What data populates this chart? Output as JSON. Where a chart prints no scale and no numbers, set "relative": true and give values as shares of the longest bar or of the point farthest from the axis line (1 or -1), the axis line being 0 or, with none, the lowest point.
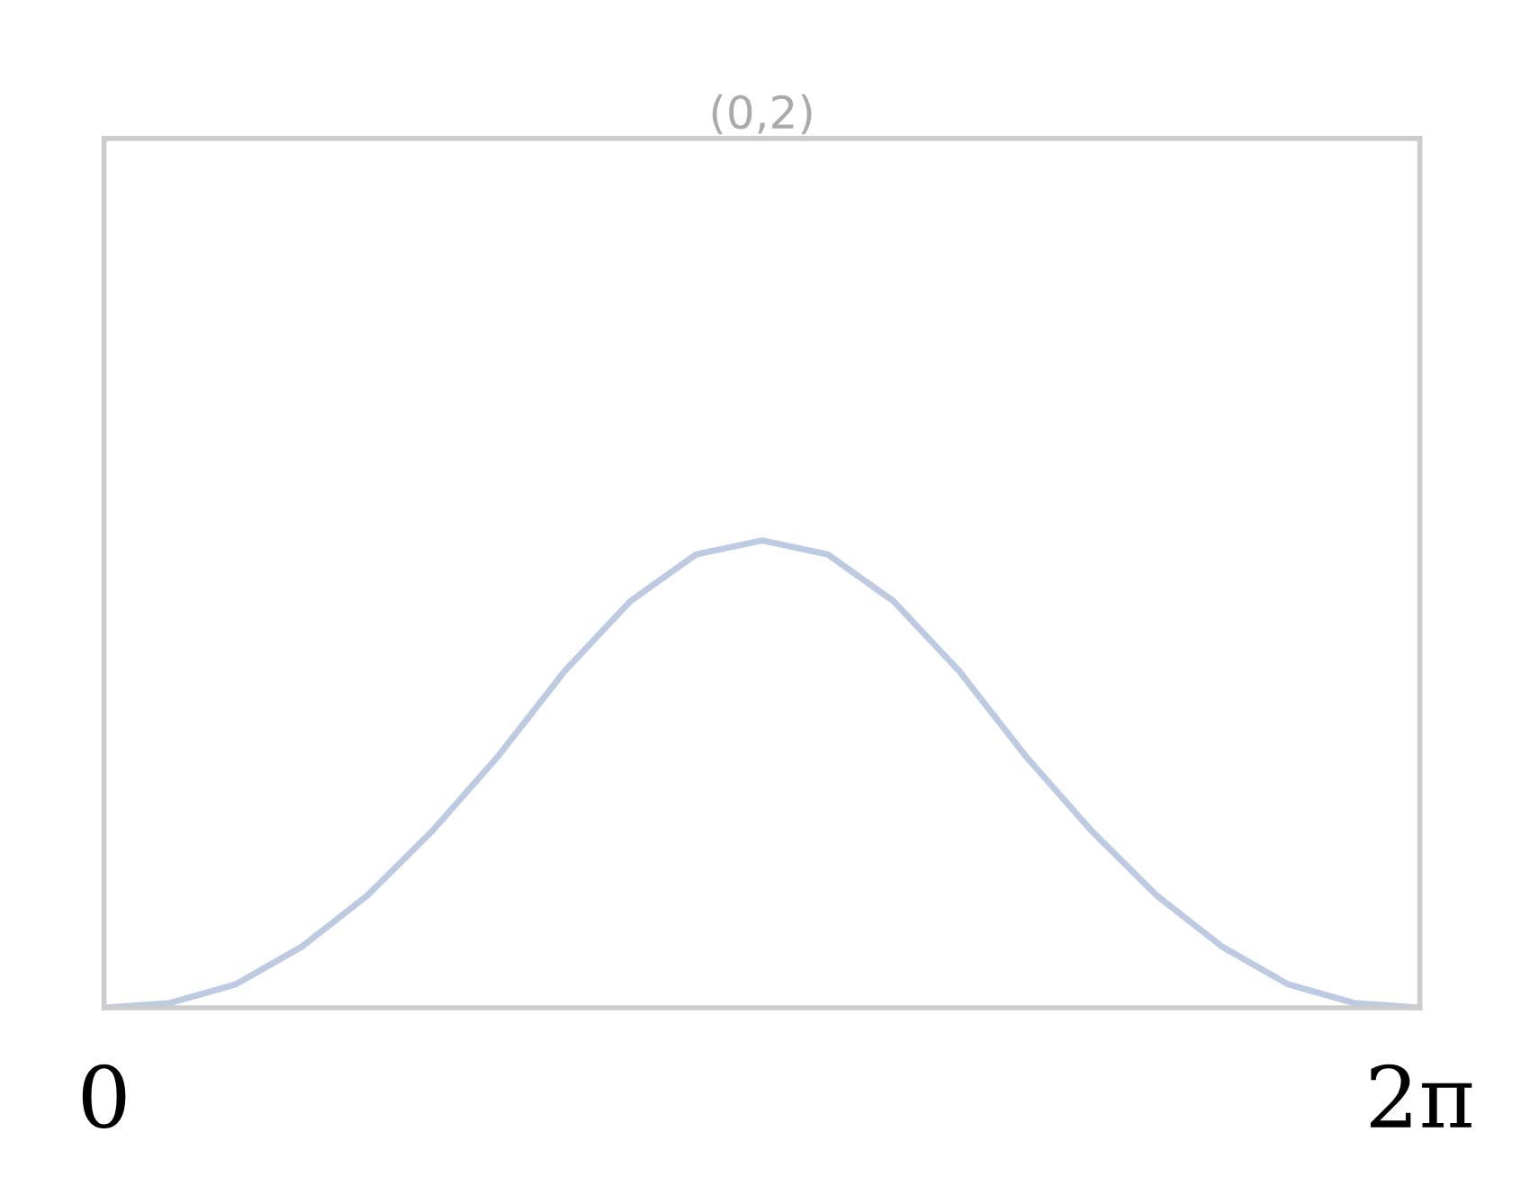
{
  "chart_data": {
    "type": "line",
    "title": "(0,2)",
    "relative": true,
    "tick_labels": "x",
    "legend": false,
    "x": [
      0,
      0.314,
      0.628,
      0.942,
      1.257,
      1.571,
      1.885,
      2.199,
      2.513,
      2.827,
      3.142,
      3.456,
      3.77,
      4.084,
      4.398,
      4.712,
      5.027,
      5.341,
      5.655,
      5.969,
      6.283
    ],
    "xlim": [
      0,
      6.283
    ],
    "xticks": [
      {
        "value": 0,
        "label": "0"
      },
      {
        "value": 6.283,
        "label": "2π"
      }
    ],
    "series": [
      {
        "color": "#bccbe2",
        "values": [
          0,
          0.01,
          0.05,
          0.13,
          0.24,
          0.38,
          0.54,
          0.72,
          0.87,
          0.97,
          1,
          0.97,
          0.87,
          0.72,
          0.54,
          0.38,
          0.24,
          0.13,
          0.05,
          0.01,
          0
        ]
      }
    ]
  }
}
